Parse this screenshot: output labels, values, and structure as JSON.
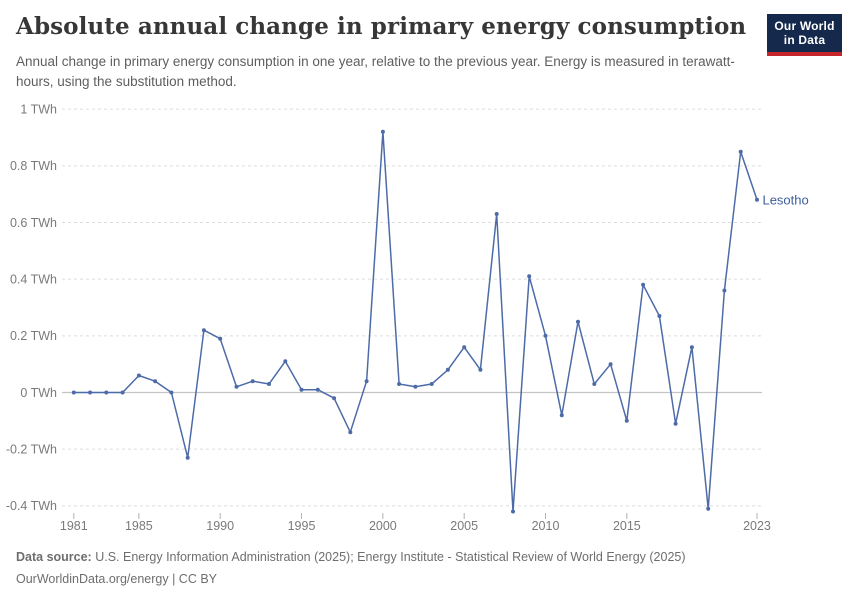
{
  "header": {
    "title": "Absolute annual change in primary energy consumption",
    "subtitle": "Annual change in primary energy consumption in one year, relative to the previous year. Energy is measured in terawatt-hours, using the substitution method.",
    "logo": {
      "line1": "Our World",
      "line2": "in Data"
    }
  },
  "footer": {
    "source_label": "Data source:",
    "source_text": "U.S. Energy Information Administration (2025); Energy Institute - Statistical Review of World Energy (2025)",
    "link_line": "OurWorldinData.org/energy | CC BY"
  },
  "colors": {
    "line": "#4c6ba8",
    "entity_label": "#3d5f9e",
    "grid": "#dcdcdc",
    "zero_line": "#c4c4c4",
    "axis_text": "#7a7a7a",
    "logo_bg": "#14294b",
    "logo_red": "#c5262c"
  },
  "chart_data": {
    "type": "line",
    "title": "Absolute annual change in primary energy consumption",
    "xlabel": "",
    "ylabel": "Annual change in primary energy consumption",
    "unit": "TWh",
    "grid": true,
    "legend_position": "end-of-line",
    "ylim": [
      -0.47,
      1.05
    ],
    "xlim": [
      1980.3,
      2023.7
    ],
    "x": [
      1981,
      1982,
      1983,
      1984,
      1985,
      1986,
      1987,
      1988,
      1989,
      1990,
      1991,
      1992,
      1993,
      1994,
      1995,
      1996,
      1997,
      1998,
      1999,
      2000,
      2001,
      2002,
      2003,
      2004,
      2005,
      2006,
      2007,
      2008,
      2009,
      2010,
      2011,
      2012,
      2013,
      2014,
      2015,
      2016,
      2017,
      2018,
      2019,
      2020,
      2021,
      2022,
      2023
    ],
    "series": [
      {
        "name": "Lesotho",
        "values": [
          0.0,
          0.0,
          0.0,
          0.0,
          0.06,
          0.04,
          0.0,
          -0.23,
          0.22,
          0.19,
          0.02,
          0.04,
          0.03,
          0.11,
          0.01,
          0.01,
          -0.02,
          -0.14,
          0.04,
          0.92,
          0.03,
          0.02,
          0.03,
          0.08,
          0.16,
          0.08,
          0.63,
          -0.42,
          0.41,
          0.2,
          -0.08,
          0.25,
          0.03,
          0.1,
          -0.1,
          0.38,
          0.27,
          -0.11,
          0.16,
          -0.41,
          0.36,
          0.85,
          0.68
        ]
      }
    ],
    "yticks": [
      {
        "v": 1.0,
        "label": "1 TWh"
      },
      {
        "v": 0.8,
        "label": "0.8 TWh"
      },
      {
        "v": 0.6,
        "label": "0.6 TWh"
      },
      {
        "v": 0.4,
        "label": "0.4 TWh"
      },
      {
        "v": 0.2,
        "label": "0.2 TWh"
      },
      {
        "v": 0.0,
        "label": "0 TWh"
      },
      {
        "v": -0.2,
        "label": "-0.2 TWh"
      },
      {
        "v": -0.4,
        "label": "-0.4 TWh"
      }
    ],
    "xticks": [
      1981,
      1985,
      1990,
      1995,
      2000,
      2005,
      2010,
      2015,
      2023
    ]
  }
}
